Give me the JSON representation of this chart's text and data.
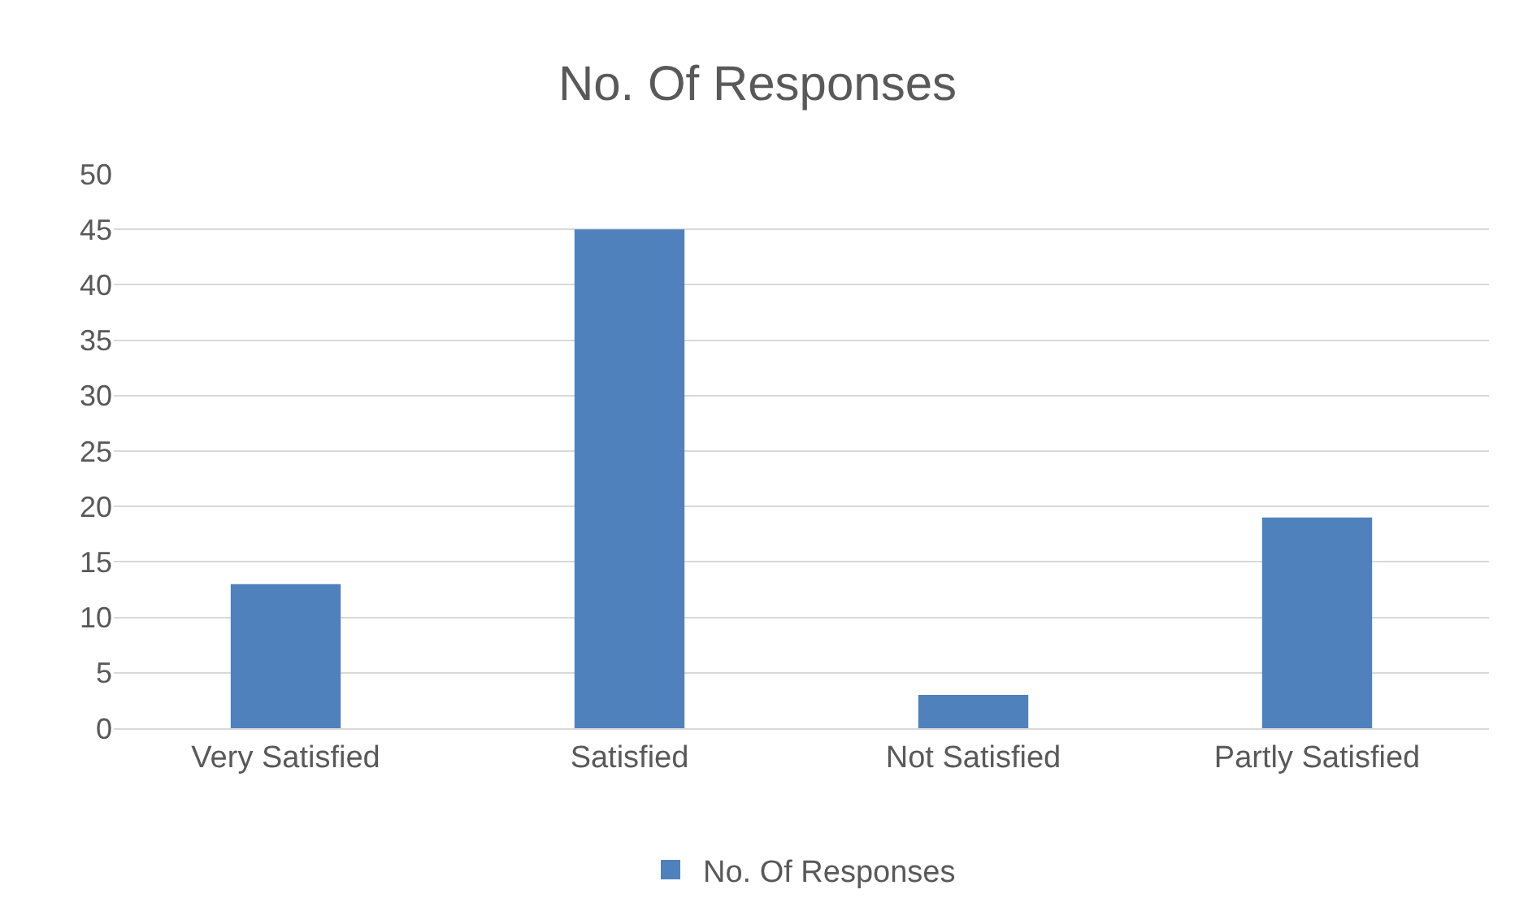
{
  "chart_data": {
    "type": "bar",
    "title": "No. Of Responses",
    "categories": [
      "Very Satisfied",
      "Satisfied",
      "Not Satisfied",
      "Partly Satisfied"
    ],
    "series": [
      {
        "name": "No. Of Responses",
        "color": "#4f81bd",
        "values": [
          13,
          45,
          3,
          19
        ]
      }
    ],
    "ylim": [
      0,
      50
    ],
    "yticks": [
      0,
      5,
      10,
      15,
      20,
      25,
      30,
      35,
      40,
      45,
      50
    ],
    "grid": "y",
    "legend": "bottom"
  }
}
